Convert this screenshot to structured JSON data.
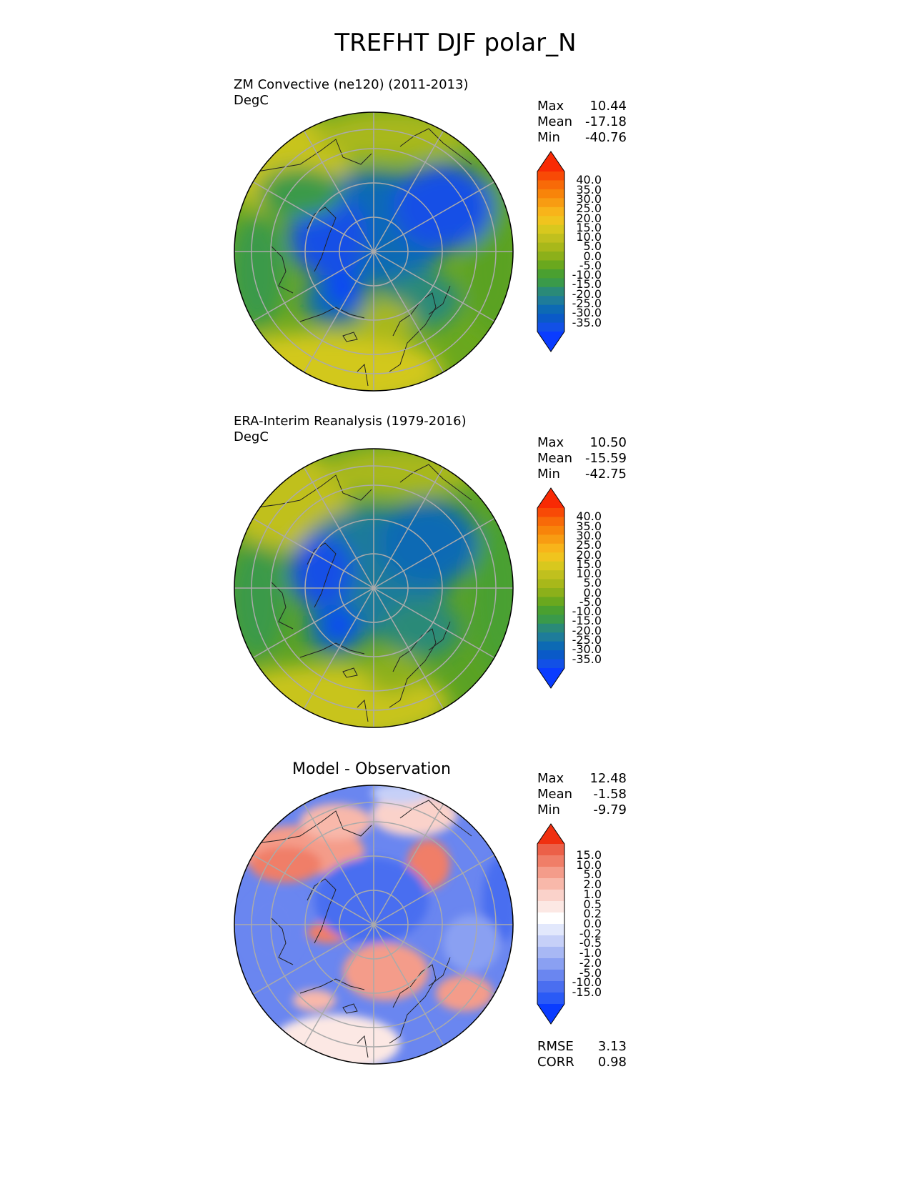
{
  "title": "TREFHT DJF polar_N",
  "panels": [
    {
      "id": "test",
      "title_line1": "ZM Convective (ne120) (2011-2013)",
      "title_line2": "DegC",
      "stats": [
        {
          "label": "Max",
          "value": "10.44"
        },
        {
          "label": "Mean",
          "value": "-17.18"
        },
        {
          "label": "Min",
          "value": "-40.76"
        }
      ],
      "colorbar_ticks": [
        "40.0",
        "35.0",
        "30.0",
        "25.0",
        "20.0",
        "15.0",
        "10.0",
        "5.0",
        "0.0",
        "-5.0",
        "-10.0",
        "-15.0",
        "-20.0",
        "-25.0",
        "-30.0",
        "-35.0"
      ]
    },
    {
      "id": "ref",
      "title_line1": "ERA-Interim Reanalysis (1979-2016)",
      "title_line2": "DegC",
      "stats": [
        {
          "label": "Max",
          "value": "10.50"
        },
        {
          "label": "Mean",
          "value": "-15.59"
        },
        {
          "label": "Min",
          "value": "-42.75"
        }
      ],
      "colorbar_ticks": [
        "40.0",
        "35.0",
        "30.0",
        "25.0",
        "20.0",
        "15.0",
        "10.0",
        "5.0",
        "0.0",
        "-5.0",
        "-10.0",
        "-15.0",
        "-20.0",
        "-25.0",
        "-30.0",
        "-35.0"
      ]
    },
    {
      "id": "diff",
      "center_title": "Model - Observation",
      "stats": [
        {
          "label": "Max",
          "value": "12.48"
        },
        {
          "label": "Mean",
          "value": "-1.58"
        },
        {
          "label": "Min",
          "value": "-9.79"
        }
      ],
      "extra_stats": [
        {
          "label": "RMSE",
          "value": "3.13"
        },
        {
          "label": "CORR",
          "value": "0.98"
        }
      ],
      "colorbar_ticks": [
        "15.0",
        "10.0",
        "5.0",
        "2.0",
        "1.0",
        "0.5",
        "0.2",
        "0.0",
        "-0.2",
        "-0.5",
        "-1.0",
        "-2.0",
        "-5.0",
        "-10.0",
        "-15.0"
      ]
    }
  ],
  "colors": {
    "temp_scale": [
      "#0a3cff",
      "#1250e6",
      "#0a5ac8",
      "#0d6ab4",
      "#1e7c9a",
      "#2a8a78",
      "#3a9a4a",
      "#4aa030",
      "#6aa81e",
      "#8cb01a",
      "#a8b81a",
      "#c0c01e",
      "#d8c81e",
      "#f0c41e",
      "#f8b41a",
      "#f89c12",
      "#f8840a",
      "#f86a08",
      "#f84a06",
      "#f82a04"
    ],
    "diff_scale": [
      "#0a3cff",
      "#2a5af6",
      "#4a6ef0",
      "#6a86f0",
      "#8aa0f2",
      "#a8b8f4",
      "#c6d0f8",
      "#e2e8fc",
      "#ffffff",
      "#fce8e4",
      "#fad2ca",
      "#f8b8aa",
      "#f49c8a",
      "#f07e68",
      "#ec6048",
      "#f03010"
    ]
  }
}
